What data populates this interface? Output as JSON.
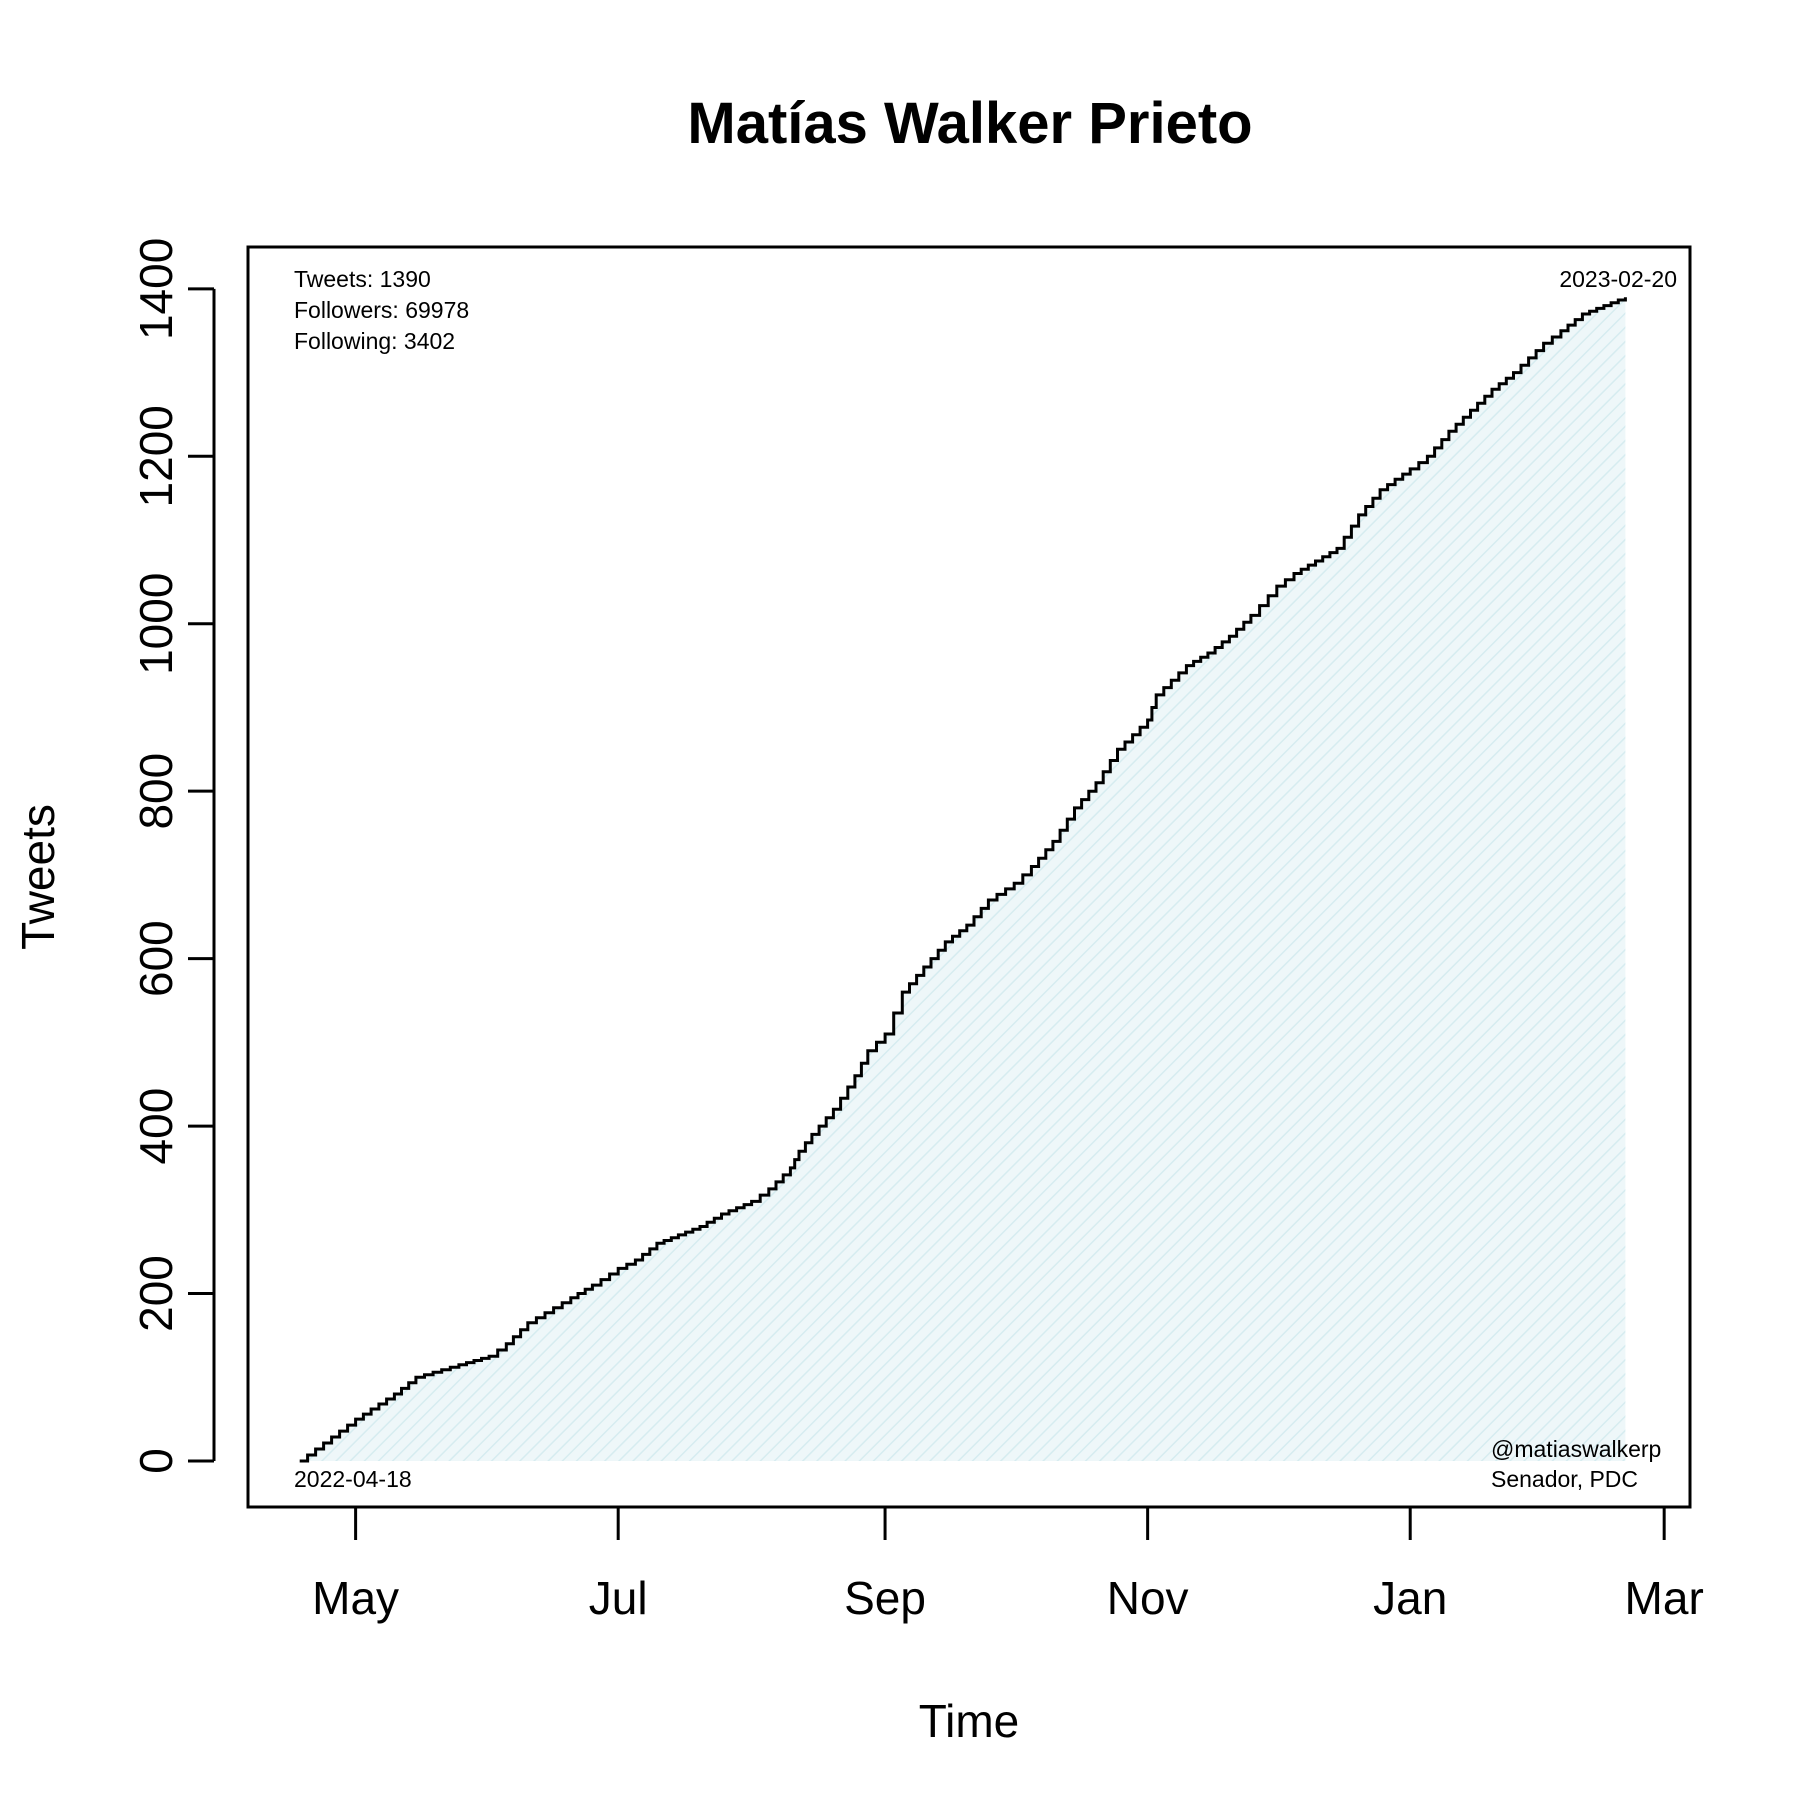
{
  "chart_data": {
    "type": "area",
    "title": "Matías Walker Prieto",
    "xlabel": "Time",
    "ylabel": "Tweets",
    "x_range": [
      "2022-04-06",
      "2023-03-07"
    ],
    "ylim": [
      -55,
      1450
    ],
    "x_ticks": [
      {
        "date": "2022-05-01",
        "label": "May"
      },
      {
        "date": "2022-07-01",
        "label": "Jul"
      },
      {
        "date": "2022-09-01",
        "label": "Sep"
      },
      {
        "date": "2022-11-01",
        "label": "Nov"
      },
      {
        "date": "2023-01-01",
        "label": "Jan"
      },
      {
        "date": "2023-03-01",
        "label": "Mar"
      }
    ],
    "y_ticks": [
      0,
      200,
      400,
      600,
      800,
      1000,
      1200,
      1400
    ],
    "series": [
      {
        "line_color": "#000000",
        "fill_color": "#dff0f3",
        "points": [
          [
            "2022-04-18",
            0
          ],
          [
            "2022-05-01",
            50
          ],
          [
            "2022-05-10",
            80
          ],
          [
            "2022-05-15",
            100
          ],
          [
            "2022-05-25",
            115
          ],
          [
            "2022-06-01",
            125
          ],
          [
            "2022-06-05",
            140
          ],
          [
            "2022-06-10",
            165
          ],
          [
            "2022-06-20",
            195
          ],
          [
            "2022-06-25",
            210
          ],
          [
            "2022-07-01",
            230
          ],
          [
            "2022-07-05",
            240
          ],
          [
            "2022-07-10",
            260
          ],
          [
            "2022-07-15",
            270
          ],
          [
            "2022-07-20",
            280
          ],
          [
            "2022-07-25",
            295
          ],
          [
            "2022-08-01",
            310
          ],
          [
            "2022-08-05",
            325
          ],
          [
            "2022-08-10",
            350
          ],
          [
            "2022-08-12",
            370
          ],
          [
            "2022-08-15",
            390
          ],
          [
            "2022-08-20",
            420
          ],
          [
            "2022-08-25",
            460
          ],
          [
            "2022-08-28",
            490
          ],
          [
            "2022-09-01",
            510
          ],
          [
            "2022-09-05",
            560
          ],
          [
            "2022-09-10",
            590
          ],
          [
            "2022-09-15",
            620
          ],
          [
            "2022-09-20",
            640
          ],
          [
            "2022-09-25",
            670
          ],
          [
            "2022-10-01",
            690
          ],
          [
            "2022-10-05",
            710
          ],
          [
            "2022-10-10",
            740
          ],
          [
            "2022-10-15",
            780
          ],
          [
            "2022-10-20",
            810
          ],
          [
            "2022-10-25",
            850
          ],
          [
            "2022-11-01",
            885
          ],
          [
            "2022-11-03",
            915
          ],
          [
            "2022-11-10",
            950
          ],
          [
            "2022-11-15",
            965
          ],
          [
            "2022-11-20",
            985
          ],
          [
            "2022-11-25",
            1010
          ],
          [
            "2022-12-01",
            1045
          ],
          [
            "2022-12-05",
            1060
          ],
          [
            "2022-12-10",
            1075
          ],
          [
            "2022-12-15",
            1090
          ],
          [
            "2022-12-20",
            1130
          ],
          [
            "2022-12-25",
            1160
          ],
          [
            "2023-01-01",
            1185
          ],
          [
            "2023-01-05",
            1200
          ],
          [
            "2023-01-10",
            1230
          ],
          [
            "2023-01-15",
            1255
          ],
          [
            "2023-01-20",
            1280
          ],
          [
            "2023-01-25",
            1300
          ],
          [
            "2023-02-01",
            1335
          ],
          [
            "2023-02-05",
            1350
          ],
          [
            "2023-02-10",
            1370
          ],
          [
            "2023-02-15",
            1380
          ],
          [
            "2023-02-20",
            1390
          ]
        ]
      }
    ],
    "annotations": {
      "stats": [
        "Tweets: 1390",
        "Followers: 69978",
        "Following: 3402"
      ],
      "start_date": "2022-04-18",
      "end_date": "2023-02-20",
      "handle": "@matiaswalkerp",
      "role": "Senador, PDC"
    }
  }
}
